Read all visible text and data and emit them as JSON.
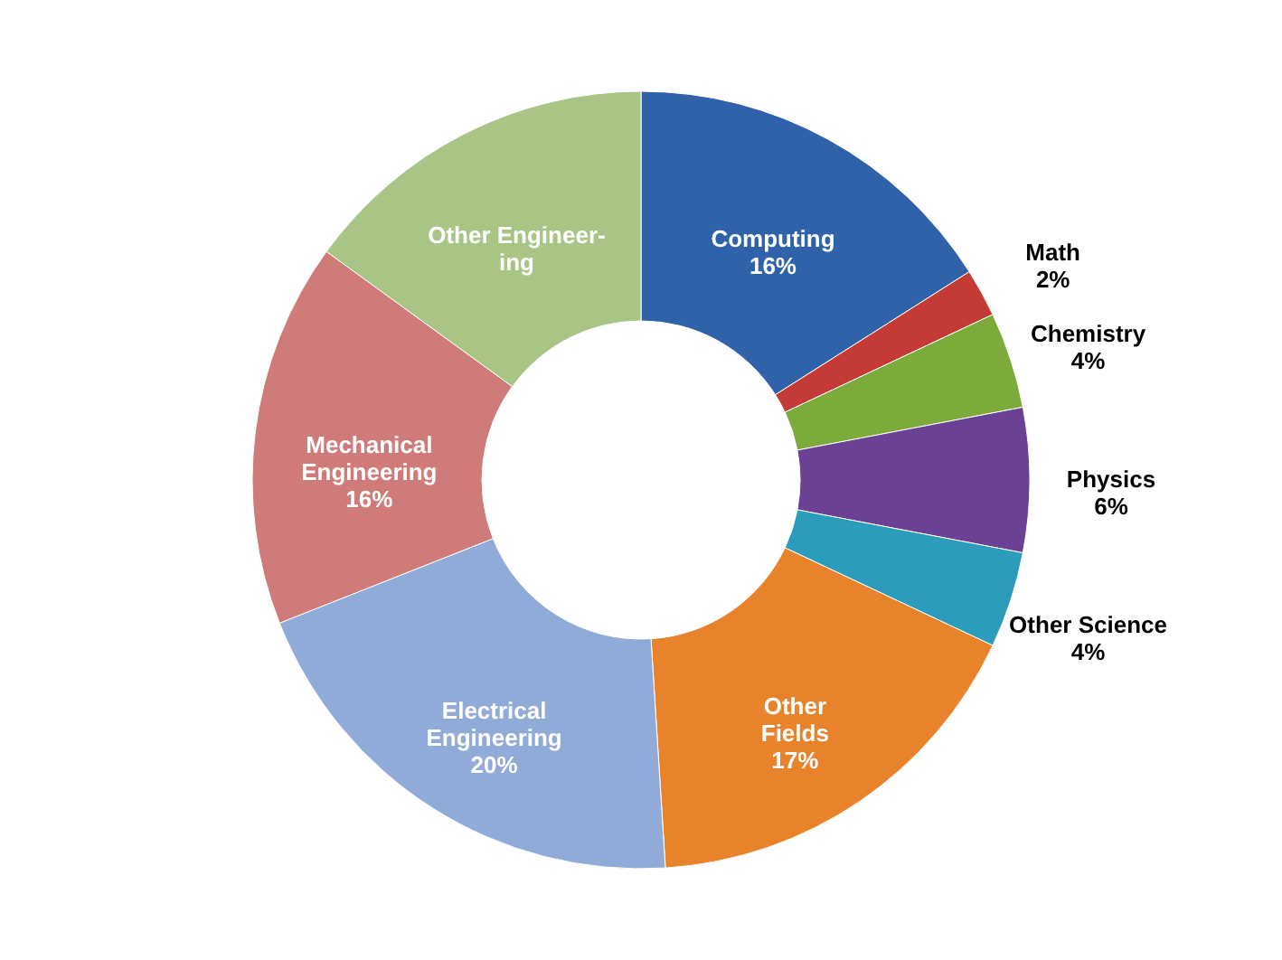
{
  "chart_data": {
    "type": "donut",
    "categories": [
      "Computing",
      "Math",
      "Chemistry",
      "Physics",
      "Other Science",
      "Other\nFields",
      "Electrical\nEngineering",
      "Mechanical\nEngineering",
      "Other Engineer-\ning"
    ],
    "values": [
      16,
      2,
      4,
      6,
      4,
      17,
      20,
      16,
      15
    ],
    "value_labels": [
      "16%",
      "2%",
      "4%",
      "6%",
      "4%",
      "17%",
      "20%",
      "16%",
      null
    ],
    "colors": [
      "#2f62a8",
      "#c43a34",
      "#7cab3c",
      "#6b4196",
      "#2b9cba",
      "#e8832c",
      "#91abd8",
      "#cf7b79",
      "#a8c585"
    ],
    "legend": false
  }
}
